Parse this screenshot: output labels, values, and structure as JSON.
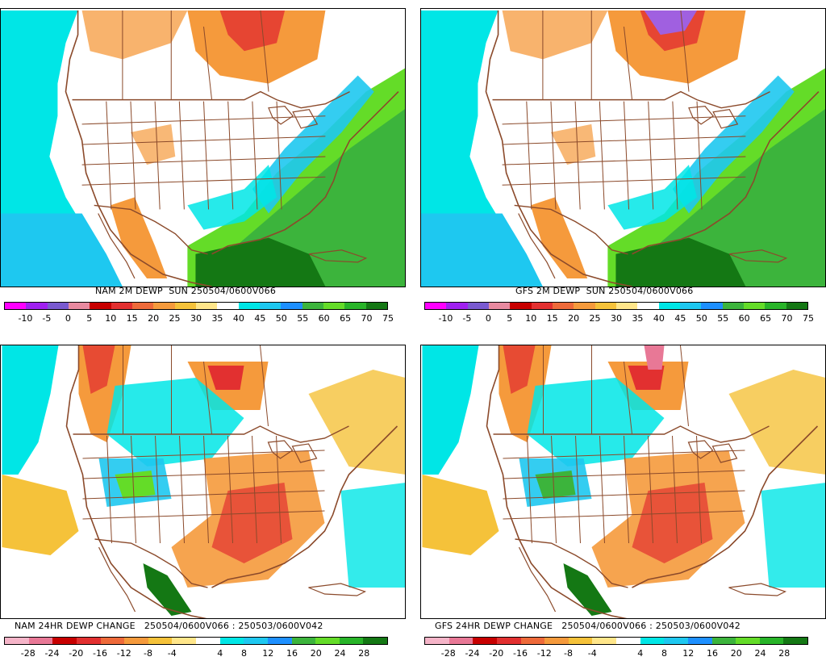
{
  "panels": [
    {
      "id": "nam-dewp",
      "caption": "NAM 2M DEWP  SUN 250504/0600V066",
      "colors": [
        "#ff00ff",
        "#a020f0",
        "#7a5ad0",
        "#e88aa0",
        "#c80000",
        "#e23030",
        "#ee6a3a",
        "#f59a3c",
        "#f5c23a",
        "#ffe68a",
        "#ffffff",
        "#00e6e6",
        "#1ec8f0",
        "#1e90ff",
        "#3cb43c",
        "#64dc28",
        "#28b428",
        "#147814"
      ],
      "labels": [
        "-10",
        "-5",
        "0",
        "5",
        "10",
        "15",
        "20",
        "25",
        "30",
        "35",
        "40",
        "45",
        "50",
        "55",
        "60",
        "65",
        "70",
        "75"
      ]
    },
    {
      "id": "gfs-dewp",
      "caption": "GFS 2M DEWP  SUN 250504/0600V066",
      "colors": [
        "#ff00ff",
        "#a020f0",
        "#7a5ad0",
        "#e88aa0",
        "#c80000",
        "#e23030",
        "#ee6a3a",
        "#f59a3c",
        "#f5c23a",
        "#ffe68a",
        "#ffffff",
        "#00e6e6",
        "#1ec8f0",
        "#1e90ff",
        "#3cb43c",
        "#64dc28",
        "#28b428",
        "#147814"
      ],
      "labels": [
        "-10",
        "-5",
        "0",
        "5",
        "10",
        "15",
        "20",
        "25",
        "30",
        "35",
        "40",
        "45",
        "50",
        "55",
        "60",
        "65",
        "70",
        "75"
      ]
    },
    {
      "id": "nam-change",
      "caption": "NAM 24HR DEWP CHANGE   250504/0600V066 : 250503/0600V042",
      "colors": [
        "#f5b4c8",
        "#e87896",
        "#c80000",
        "#e23030",
        "#ee6a3a",
        "#f59a3c",
        "#f5c23a",
        "#ffe68a",
        "#ffffff",
        "#00e6e6",
        "#1ec8f0",
        "#1e90ff",
        "#3cb43c",
        "#64dc28",
        "#28b428",
        "#147814"
      ],
      "labels": [
        "-28",
        "-24",
        "-20",
        "-16",
        "-12",
        "-8",
        "-4",
        "4",
        "8",
        "12",
        "16",
        "20",
        "24",
        "28"
      ]
    },
    {
      "id": "gfs-change",
      "caption": "GFS 24HR DEWP CHANGE   250504/0600V066 : 250503/0600V042",
      "colors": [
        "#f5b4c8",
        "#e87896",
        "#c80000",
        "#e23030",
        "#ee6a3a",
        "#f59a3c",
        "#f5c23a",
        "#ffe68a",
        "#ffffff",
        "#00e6e6",
        "#1ec8f0",
        "#1e90ff",
        "#3cb43c",
        "#64dc28",
        "#28b428",
        "#147814"
      ],
      "labels": [
        "-28",
        "-24",
        "-20",
        "-16",
        "-12",
        "-8",
        "-4",
        "4",
        "8",
        "12",
        "16",
        "20",
        "24",
        "28"
      ]
    }
  ],
  "map_colors": {
    "border_brown": "#8b4a2b",
    "ocean_cyan": "#00e6e6",
    "ocean_blue": "#1ec8f0",
    "green_light": "#64dc28",
    "green_mid": "#3cb43c",
    "green_dark": "#147814",
    "orange": "#f59a3c",
    "yellow": "#f5c23a",
    "red": "#e23030",
    "purple": "#a060e0"
  }
}
